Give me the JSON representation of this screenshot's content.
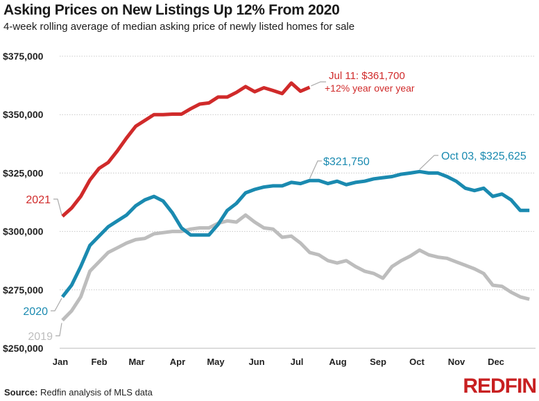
{
  "chart_data": {
    "type": "line",
    "title": "Asking Prices on New Listings Up 12% From 2020",
    "subtitle": "4-week rolling average of median asking price of newly listed homes for sale",
    "xlabel": "",
    "ylabel": "",
    "ylim": [
      250000,
      375000
    ],
    "yticks": [
      250000,
      275000,
      300000,
      325000,
      350000,
      375000
    ],
    "ytick_labels": [
      "$250,000",
      "$275,000",
      "$300,000",
      "$325,000",
      "$350,000",
      "$375,000"
    ],
    "x_unit": "week of year",
    "xticks": [
      "Jan",
      "Feb",
      "Mar",
      "Apr",
      "May",
      "Jun",
      "Jul",
      "Aug",
      "Sep",
      "Oct",
      "Nov",
      "Dec"
    ],
    "grid": "horizontal dotted",
    "series": [
      {
        "name": "2019",
        "color": "#bdbdbd",
        "values": [
          262000,
          266000,
          272000,
          283000,
          287000,
          291000,
          293000,
          295000,
          296500,
          297000,
          299000,
          299500,
          300000,
          300000,
          301000,
          301500,
          301500,
          303500,
          304500,
          304000,
          307000,
          304000,
          301500,
          301000,
          297500,
          298000,
          295000,
          291000,
          290000,
          287500,
          286500,
          287500,
          285000,
          283000,
          282000,
          280000,
          285000,
          287500,
          289500,
          292000,
          290000,
          289000,
          288500,
          287000,
          285500,
          284000,
          282000,
          277000,
          276500,
          274000,
          272000,
          271000
        ]
      },
      {
        "name": "2020",
        "color": "#1a8ab0",
        "values": [
          272000,
          277000,
          285000,
          294000,
          298000,
          302000,
          304500,
          307000,
          311000,
          313500,
          315000,
          313000,
          308000,
          301500,
          298500,
          298500,
          298500,
          303000,
          309000,
          312000,
          316500,
          318000,
          319000,
          319500,
          319500,
          321000,
          320500,
          321750,
          321750,
          320500,
          321500,
          320000,
          321000,
          321500,
          322500,
          323000,
          323500,
          324500,
          325000,
          325625,
          325000,
          325000,
          323500,
          321500,
          318500,
          317500,
          318500,
          315000,
          316000,
          313500,
          309000,
          309000
        ]
      },
      {
        "name": "2021",
        "color": "#d02a2a",
        "values": [
          306500,
          310000,
          315000,
          322000,
          327000,
          329500,
          334500,
          340000,
          345000,
          347500,
          350000,
          350000,
          350200,
          350200,
          352500,
          354500,
          355000,
          357500,
          357500,
          359500,
          362000,
          359800,
          361500,
          360300,
          359000,
          363500,
          360000,
          361700
        ]
      }
    ],
    "annotations": [
      {
        "series": "2021",
        "label": "2021",
        "color": "#d02a2a"
      },
      {
        "series": "2020",
        "label": "2020",
        "color": "#1a8ab0"
      },
      {
        "series": "2019",
        "label": "2019",
        "color": "#bdbdbd"
      },
      {
        "series": "2021",
        "line1": "Jul 11: $361,700",
        "line2": "+12% year over year",
        "color": "#d02a2a"
      },
      {
        "series": "2020",
        "label": "$321,750",
        "color": "#1a8ab0"
      },
      {
        "series": "2020",
        "label": "Oct 03, $325,625",
        "color": "#1a8ab0"
      }
    ],
    "legend": "inline labels"
  },
  "footer": {
    "source_label": "Source:",
    "source_text": " Redfin analysis of MLS data",
    "logo": "REDFIN"
  }
}
